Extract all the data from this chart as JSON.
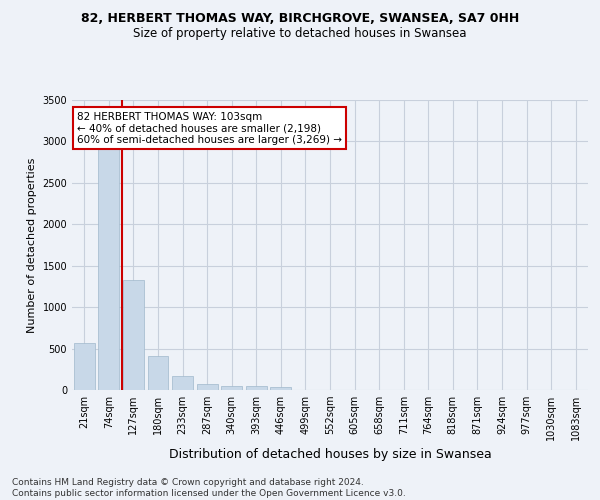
{
  "title_line1": "82, HERBERT THOMAS WAY, BIRCHGROVE, SWANSEA, SA7 0HH",
  "title_line2": "Size of property relative to detached houses in Swansea",
  "xlabel": "Distribution of detached houses by size in Swansea",
  "ylabel": "Number of detached properties",
  "footnote": "Contains HM Land Registry data © Crown copyright and database right 2024.\nContains public sector information licensed under the Open Government Licence v3.0.",
  "bin_labels": [
    "21sqm",
    "74sqm",
    "127sqm",
    "180sqm",
    "233sqm",
    "287sqm",
    "340sqm",
    "393sqm",
    "446sqm",
    "499sqm",
    "552sqm",
    "605sqm",
    "658sqm",
    "711sqm",
    "764sqm",
    "818sqm",
    "871sqm",
    "924sqm",
    "977sqm",
    "1030sqm",
    "1083sqm"
  ],
  "bar_heights": [
    570,
    2920,
    1330,
    415,
    170,
    75,
    50,
    45,
    40,
    0,
    0,
    0,
    0,
    0,
    0,
    0,
    0,
    0,
    0,
    0,
    0
  ],
  "bar_color": "#c8d8e8",
  "bar_edge_color": "#a0b8cc",
  "property_line_x": 1.55,
  "annotation_text": "82 HERBERT THOMAS WAY: 103sqm\n← 40% of detached houses are smaller (2,198)\n60% of semi-detached houses are larger (3,269) →",
  "annotation_box_color": "#ffffff",
  "annotation_box_edge": "#cc0000",
  "vline_color": "#cc0000",
  "grid_color": "#c8d0dc",
  "bg_color": "#eef2f8",
  "ylim": [
    0,
    3500
  ],
  "yticks": [
    0,
    500,
    1000,
    1500,
    2000,
    2500,
    3000,
    3500
  ],
  "title1_fontsize": 9,
  "title2_fontsize": 8.5,
  "ylabel_fontsize": 8,
  "xlabel_fontsize": 9,
  "tick_fontsize": 7,
  "footnote_fontsize": 6.5
}
